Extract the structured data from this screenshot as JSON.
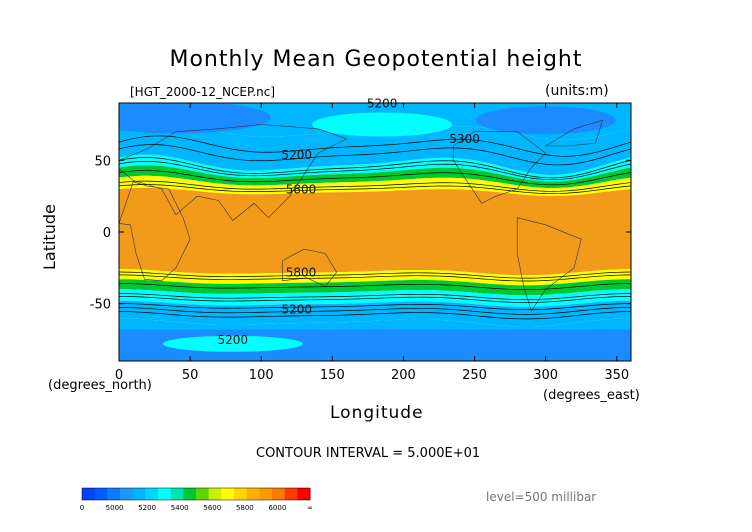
{
  "title": "Monthly Mean Geopotential height",
  "subtitle": "[HGT_2000-12_NCEP.nc]",
  "units": "(units:m)",
  "contour_interval": "CONTOUR INTERVAL = 5.000E+01",
  "level": "level=500 millibar",
  "colors": {
    "lt5000": "#0a66ff",
    "c5000": "#1a8cff",
    "c5200": "#00b7ff",
    "c5400": "#00ffff",
    "c5600": "#00c832",
    "c5800": "#ffff00",
    "c6000": "#ff9900",
    "gt6000": "#ff0000",
    "band_orange": "#f29a1a"
  },
  "chart_data": {
    "type": "heatmap",
    "title": "Monthly Mean Geopotential height",
    "xlabel": "Longitude",
    "ylabel": "Latitude",
    "x_unit": "(degrees_east)",
    "y_unit": "(degrees_north)",
    "xlim": [
      0,
      360
    ],
    "ylim": [
      -90,
      90
    ],
    "x_ticks": [
      0,
      50,
      100,
      150,
      200,
      250,
      300,
      350
    ],
    "y_ticks": [
      50,
      0,
      -50
    ],
    "contour_labels": [
      {
        "text": "5200",
        "lon": 185,
        "lat": 87
      },
      {
        "text": "5300",
        "lon": 243,
        "lat": 62
      },
      {
        "text": "5200",
        "lon": 125,
        "lat": 51
      },
      {
        "text": "5800",
        "lon": 128,
        "lat": 27
      },
      {
        "text": "5800",
        "lon": 128,
        "lat": -31
      },
      {
        "text": "5200",
        "lon": 125,
        "lat": -57
      },
      {
        "text": "5200",
        "lon": 80,
        "lat": -78
      }
    ],
    "colorbar": {
      "labels": [
        "0",
        "5000",
        "5200",
        "5400",
        "5600",
        "5800",
        "6000",
        "∞"
      ],
      "levels": [
        0,
        5000,
        5200,
        5400,
        5600,
        5800,
        6000
      ]
    },
    "bands": [
      {
        "range": "<5200",
        "zone": "north-pole",
        "lat_min": 70,
        "lat_max": 90
      },
      {
        "range": "5200-5400",
        "lat_min": 45,
        "lat_max": 70
      },
      {
        "range": "5400-5600",
        "lat_min": 38,
        "lat_max": 45
      },
      {
        "range": "5600-5800",
        "lat_min": 30,
        "lat_max": 38
      },
      {
        "range": ">5800",
        "lat_min": -28,
        "lat_max": 30
      },
      {
        "range": "5600-5800",
        "lat_min": -37,
        "lat_max": -28
      },
      {
        "range": "5400-5600",
        "lat_min": -47,
        "lat_max": -37
      },
      {
        "range": "5200-5400",
        "lat_min": -62,
        "lat_max": -47
      },
      {
        "range": "<5200",
        "zone": "south-pole",
        "lat_min": -90,
        "lat_max": -62
      }
    ]
  }
}
